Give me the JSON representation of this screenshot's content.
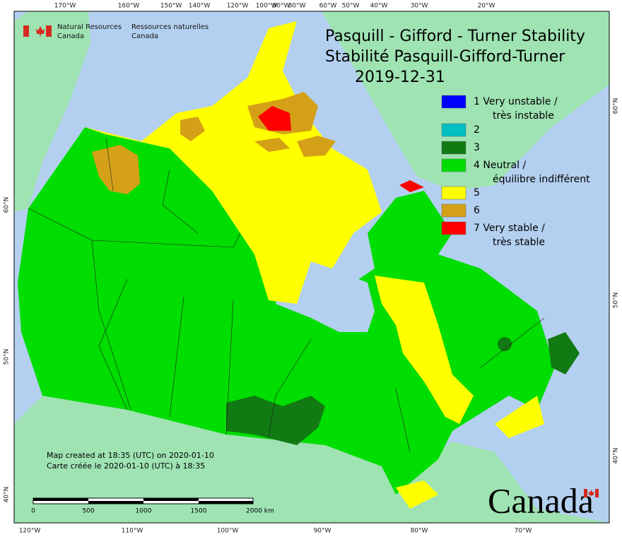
{
  "header": {
    "org_en": [
      "Natural Resources",
      "Canada"
    ],
    "org_fr": [
      "Ressources naturelles",
      "Canada"
    ]
  },
  "title": [
    "Pasquill - Gifford - Turner Stability",
    "Stabilité Pasquill-Gifford-Turner",
    "2019-12-31"
  ],
  "legend": [
    {
      "label": [
        "1 Very unstable /",
        "très instable"
      ],
      "color": "#0000ff"
    },
    {
      "label": [
        "2"
      ],
      "color": "#00c0c0"
    },
    {
      "label": [
        "3"
      ],
      "color": "#127a12"
    },
    {
      "label": [
        "4 Neutral /",
        "équilibre indifférent"
      ],
      "color": "#00dd00"
    },
    {
      "label": [
        "5"
      ],
      "color": "#ffff00"
    },
    {
      "label": [
        "6"
      ],
      "color": "#d4a017"
    },
    {
      "label": [
        "7 Very stable /",
        "très stable"
      ],
      "color": "#ff0000"
    }
  ],
  "graticule": {
    "top": [
      "170°W",
      "160°W",
      "150°W",
      "140°W",
      "120°W",
      "100°W",
      "90°W",
      "80°W",
      "60°W",
      "50°W",
      "40°W",
      "30°W",
      "20°W"
    ],
    "bottom": [
      "120°W",
      "110°W",
      "100°W",
      "90°W",
      "80°W",
      "70°W"
    ],
    "left": [
      "60°N",
      "50°N",
      "40°N"
    ],
    "right": [
      "60°N",
      "50°N",
      "40°N"
    ]
  },
  "credits": [
    "Map created at 18:35 (UTC) on 2020-01-10",
    "Carte créée le 2020-01-10 (UTC) à 18:35"
  ],
  "scale": [
    "0",
    "500",
    "1000",
    "1500",
    "2000 km"
  ],
  "wordmark": "Canada"
}
